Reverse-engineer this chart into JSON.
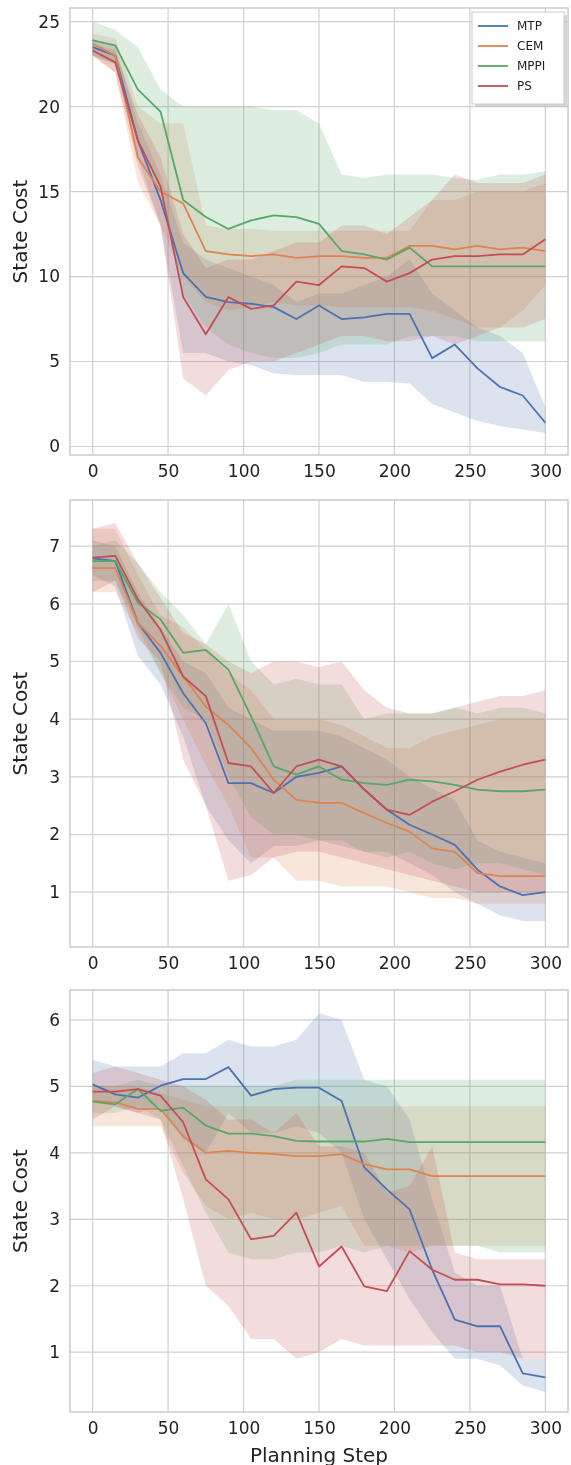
{
  "chart_data": [
    {
      "type": "line",
      "ylabel": "State Cost",
      "x": [
        0,
        15,
        30,
        45,
        60,
        75,
        90,
        105,
        120,
        135,
        150,
        165,
        180,
        195,
        210,
        225,
        240,
        255,
        270,
        285,
        300
      ],
      "xlim": [
        -15,
        315
      ],
      "xticks": [
        0,
        50,
        100,
        150,
        200,
        250,
        300
      ],
      "ylim": [
        -0.5,
        25.8
      ],
      "yticks": [
        0,
        5,
        10,
        15,
        20,
        25
      ],
      "grid": true,
      "legend": "top right",
      "line_style": "solid",
      "marker": "none",
      "series": [
        {
          "name": "MTP",
          "color": "#4c72b0",
          "values": [
            23.5,
            23.0,
            18.0,
            14.5,
            10.2,
            8.8,
            8.5,
            8.4,
            8.2,
            7.5,
            8.3,
            7.5,
            7.6,
            7.8,
            7.8,
            5.2,
            6.0,
            4.6,
            3.5,
            3.0,
            1.4
          ],
          "lower": [
            23,
            22.5,
            17,
            13,
            5.5,
            5.5,
            5,
            4.8,
            4.3,
            4.2,
            4.2,
            4.2,
            3.8,
            3.8,
            3.7,
            2.5,
            2.0,
            1.5,
            1.2,
            1.0,
            0.8
          ],
          "upper": [
            24,
            23.5,
            19,
            16,
            12,
            11,
            10.5,
            10,
            9.5,
            8.5,
            9,
            9,
            9.5,
            10,
            11,
            9,
            8,
            7,
            6.5,
            5.5,
            2.3
          ]
        },
        {
          "name": "CEM",
          "color": "#dd8452",
          "values": [
            23.7,
            23.0,
            17,
            15,
            14.3,
            11.5,
            11.3,
            11.2,
            11.3,
            11.1,
            11.2,
            11.2,
            11.1,
            11.1,
            11.8,
            11.8,
            11.6,
            11.8,
            11.6,
            11.7,
            11.5
          ],
          "lower": [
            23,
            22,
            15.5,
            13,
            10,
            8.5,
            8,
            8.2,
            8.5,
            8.3,
            8.3,
            8.2,
            8.2,
            8.2,
            8.2,
            8,
            7.5,
            7,
            7,
            8,
            9.5
          ],
          "upper": [
            24.3,
            24,
            20,
            19,
            19,
            13,
            12.8,
            12.8,
            12.7,
            12.7,
            12.7,
            12.7,
            12.7,
            12.7,
            12.7,
            14.5,
            14.5,
            15,
            15,
            15,
            15.5
          ]
        },
        {
          "name": "MPPI",
          "color": "#55a868",
          "values": [
            23.9,
            23.6,
            21,
            19.7,
            14.5,
            13.5,
            12.8,
            13.3,
            13.6,
            13.5,
            13.1,
            11.5,
            11.3,
            11.0,
            11.7,
            10.6,
            10.6,
            10.6,
            10.6,
            10.6,
            10.6
          ],
          "lower": [
            23,
            22.5,
            18,
            15,
            9,
            7,
            6,
            5.5,
            5.2,
            5.2,
            5.5,
            6,
            6,
            6,
            6.5,
            6.5,
            6.5,
            6.2,
            6.2,
            6.2,
            6.2
          ],
          "upper": [
            25,
            24.5,
            23.5,
            21,
            20,
            20,
            20,
            20,
            19.8,
            19.8,
            19,
            16,
            15.8,
            16,
            16,
            16,
            15.8,
            15.7,
            16,
            16,
            16.2
          ]
        },
        {
          "name": "PS",
          "color": "#c44e52",
          "values": [
            23.3,
            22.6,
            18,
            15.3,
            8.8,
            6.6,
            8.8,
            8.1,
            8.3,
            9.7,
            9.5,
            10.6,
            10.5,
            9.7,
            10.2,
            11,
            11.2,
            11.2,
            11.3,
            11.3,
            12.2
          ],
          "lower": [
            23,
            22,
            16.5,
            13,
            4,
            3,
            4.5,
            5,
            5,
            5.5,
            6,
            6.5,
            6.5,
            6.2,
            6.2,
            6.5,
            6,
            6.5,
            7,
            7,
            7.5
          ],
          "upper": [
            23.7,
            23.3,
            19.5,
            17,
            12.5,
            10.5,
            11,
            11,
            11.5,
            12,
            12,
            13,
            13,
            12.5,
            13.5,
            14.5,
            16,
            15.5,
            15.5,
            15.5,
            16
          ]
        }
      ]
    },
    {
      "type": "line",
      "ylabel": "State Cost",
      "x": [
        0,
        15,
        30,
        45,
        60,
        75,
        90,
        105,
        120,
        135,
        150,
        165,
        180,
        195,
        210,
        225,
        240,
        255,
        270,
        285,
        300
      ],
      "xlim": [
        -15,
        315
      ],
      "xticks": [
        0,
        50,
        100,
        150,
        200,
        250,
        300
      ],
      "ylim": [
        0.05,
        7.8
      ],
      "yticks": [
        1,
        2,
        3,
        4,
        5,
        6,
        7
      ],
      "grid": true,
      "line_style": "solid",
      "marker": "none",
      "series": [
        {
          "color": "#4c72b0",
          "values": [
            6.79,
            6.74,
            5.67,
            5.15,
            4.45,
            3.93,
            2.89,
            2.89,
            2.72,
            3.0,
            3.07,
            3.18,
            2.78,
            2.43,
            2.17,
            2.0,
            1.82,
            1.39,
            1.1,
            0.95,
            1.0
          ],
          "lower": [
            6.5,
            6.3,
            5.1,
            4.6,
            3.7,
            2.5,
            1.9,
            1.5,
            1.8,
            1.8,
            1.9,
            1.8,
            1.7,
            1.7,
            1.5,
            1.3,
            1.0,
            0.8,
            0.6,
            0.5,
            0.5
          ],
          "upper": [
            7.1,
            7.0,
            6.2,
            5.6,
            5.0,
            4.8,
            4.2,
            4.0,
            3.8,
            3.8,
            3.8,
            3.7,
            3.5,
            3.3,
            3.0,
            2.8,
            2.6,
            1.9,
            1.7,
            1.6,
            1.5
          ]
        },
        {
          "color": "#dd8452",
          "values": [
            6.62,
            6.62,
            5.67,
            5.27,
            4.74,
            4.22,
            3.9,
            3.5,
            2.95,
            2.6,
            2.55,
            2.55,
            2.37,
            2.2,
            2.05,
            1.76,
            1.7,
            1.33,
            1.28,
            1.28,
            1.28
          ],
          "lower": [
            6.2,
            6.2,
            5.5,
            4.8,
            4.0,
            3.2,
            2.5,
            1.6,
            1.6,
            1.2,
            1.2,
            1.1,
            1.1,
            1.1,
            1.0,
            0.9,
            0.9,
            0.8,
            0.8,
            0.8,
            0.8
          ],
          "upper": [
            7.3,
            7.3,
            6.5,
            5.8,
            5.6,
            5.2,
            4.8,
            4.5,
            4.0,
            4.0,
            4.0,
            3.9,
            3.7,
            3.5,
            3.5,
            3.7,
            3.8,
            3.9,
            4.0,
            4.0,
            4.0
          ]
        },
        {
          "color": "#55a868",
          "values": [
            6.74,
            6.74,
            6.02,
            5.73,
            5.15,
            5.2,
            4.86,
            4.05,
            3.18,
            3.04,
            3.18,
            2.95,
            2.89,
            2.86,
            2.95,
            2.92,
            2.86,
            2.78,
            2.75,
            2.75,
            2.78
          ],
          "lower": [
            6.4,
            6.4,
            5.6,
            4.8,
            4.2,
            4.0,
            3.0,
            2.3,
            2.0,
            2.0,
            1.9,
            1.9,
            1.7,
            1.6,
            1.7,
            1.5,
            1.4,
            1.5,
            1.5,
            1.4,
            1.3
          ],
          "upper": [
            7.0,
            7.1,
            6.7,
            6.2,
            5.8,
            5.3,
            6.0,
            5.0,
            4.6,
            4.7,
            4.6,
            4.6,
            4.0,
            4.1,
            4.1,
            4.1,
            4.2,
            4.1,
            4.2,
            4.2,
            4.1
          ]
        },
        {
          "color": "#c44e52",
          "values": [
            6.8,
            6.83,
            6.08,
            5.55,
            4.74,
            4.4,
            3.24,
            3.18,
            2.72,
            3.18,
            3.3,
            3.18,
            2.78,
            2.43,
            2.34,
            2.57,
            2.75,
            2.95,
            3.09,
            3.21,
            3.3
          ],
          "lower": [
            6.2,
            6.4,
            5.4,
            5.0,
            3.3,
            2.5,
            1.2,
            1.3,
            1.6,
            1.7,
            1.7,
            1.6,
            1.5,
            1.4,
            1.3,
            1.2,
            1.1,
            1.0,
            1.0,
            1.0,
            1.0
          ],
          "upper": [
            7.3,
            7.4,
            6.7,
            6.1,
            5.5,
            5.3,
            5.0,
            4.8,
            5.0,
            5.0,
            4.9,
            5.0,
            4.5,
            4.2,
            4.1,
            4.1,
            4.2,
            4.3,
            4.4,
            4.4,
            4.5
          ]
        }
      ]
    },
    {
      "type": "line",
      "xlabel": "Planning Step",
      "ylabel": "State Cost",
      "x": [
        0,
        15,
        30,
        45,
        60,
        75,
        90,
        105,
        120,
        135,
        150,
        165,
        180,
        195,
        210,
        225,
        240,
        255,
        270,
        285,
        300
      ],
      "xlim": [
        -15,
        315
      ],
      "xticks": [
        0,
        50,
        100,
        150,
        200,
        250,
        300
      ],
      "ylim": [
        0.1,
        6.45
      ],
      "yticks": [
        1,
        2,
        3,
        4,
        5,
        6
      ],
      "grid": true,
      "line_style": "solid",
      "marker": "none",
      "series": [
        {
          "color": "#4c72b0",
          "values": [
            5.03,
            4.88,
            4.83,
            5.01,
            5.11,
            5.11,
            5.29,
            4.86,
            4.96,
            4.98,
            4.98,
            4.78,
            3.78,
            3.45,
            3.15,
            2.24,
            1.49,
            1.39,
            1.39,
            0.68,
            0.62
          ],
          "lower": [
            4.8,
            4.7,
            4.6,
            4.7,
            4.2,
            4.0,
            4.6,
            4.3,
            4.3,
            4.4,
            4.3,
            4.0,
            3.0,
            2.4,
            1.8,
            1.3,
            0.9,
            0.9,
            0.8,
            0.5,
            0.4
          ],
          "upper": [
            5.4,
            5.3,
            5.3,
            5.3,
            5.5,
            5.5,
            5.7,
            5.6,
            5.6,
            5.7,
            6.1,
            6.0,
            5.1,
            5.0,
            4.5,
            3.3,
            2.2,
            2.0,
            2.0,
            0.9,
            0.9
          ]
        },
        {
          "color": "#dd8452",
          "values": [
            4.78,
            4.76,
            4.66,
            4.66,
            4.25,
            4.0,
            4.03,
            4.0,
            3.98,
            3.95,
            3.95,
            3.98,
            3.83,
            3.75,
            3.75,
            3.65,
            3.65,
            3.65,
            3.65,
            3.65,
            3.65
          ],
          "lower": [
            4.4,
            4.4,
            4.4,
            4.4,
            3.7,
            3.2,
            3.0,
            3.1,
            3.0,
            3.0,
            3.1,
            3.2,
            2.6,
            2.6,
            2.5,
            2.6,
            2.6,
            2.6,
            2.6,
            2.6,
            2.6
          ],
          "upper": [
            5.0,
            5.0,
            5.0,
            4.9,
            4.8,
            4.7,
            4.7,
            4.7,
            4.7,
            4.7,
            4.7,
            4.7,
            4.7,
            4.7,
            4.7,
            4.7,
            4.7,
            4.7,
            4.7,
            4.7,
            4.7
          ]
        },
        {
          "color": "#55a868",
          "values": [
            4.77,
            4.73,
            4.96,
            4.63,
            4.68,
            4.41,
            4.29,
            4.29,
            4.25,
            4.18,
            4.17,
            4.17,
            4.17,
            4.21,
            4.16,
            4.16,
            4.16,
            4.16,
            4.16,
            4.16,
            4.16
          ],
          "lower": [
            4.6,
            4.6,
            4.7,
            4.5,
            3.8,
            3.1,
            2.5,
            2.4,
            2.4,
            2.5,
            2.5,
            2.6,
            2.5,
            2.6,
            2.6,
            2.6,
            2.6,
            2.6,
            2.5,
            2.5,
            2.5
          ],
          "upper": [
            5.0,
            5.0,
            5.1,
            5.0,
            5.0,
            5.0,
            5.0,
            5.0,
            5.0,
            5.1,
            5.1,
            5.1,
            5.1,
            5.1,
            5.1,
            5.1,
            5.1,
            5.1,
            5.1,
            5.1,
            5.1
          ]
        },
        {
          "color": "#c44e52",
          "values": [
            4.92,
            4.92,
            4.96,
            4.86,
            4.46,
            3.6,
            3.3,
            2.7,
            2.75,
            3.1,
            2.29,
            2.59,
            1.99,
            1.92,
            2.52,
            2.24,
            2.09,
            2.09,
            2.02,
            2.02,
            2.0
          ],
          "lower": [
            4.5,
            4.7,
            4.6,
            4.5,
            3.3,
            2.0,
            1.7,
            1.2,
            1.2,
            0.9,
            1.0,
            1.2,
            1.1,
            1.1,
            1.1,
            1.1,
            1.1,
            1.0,
            1.0,
            0.9,
            0.9
          ],
          "upper": [
            5.2,
            5.3,
            5.2,
            5.1,
            5.0,
            4.8,
            4.5,
            4.5,
            4.3,
            4.6,
            4.1,
            4.1,
            4.0,
            3.4,
            3.5,
            4.1,
            2.5,
            2.4,
            2.4,
            2.4,
            2.4
          ]
        }
      ]
    }
  ]
}
